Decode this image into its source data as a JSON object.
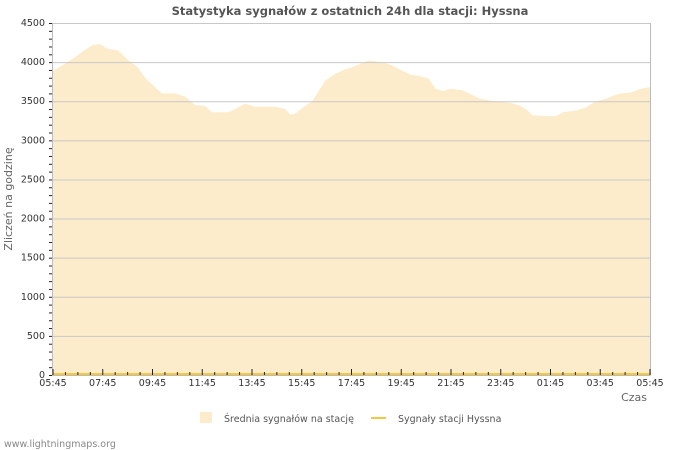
{
  "title": "Statystyka sygnałów z ostatnich 24h dla stacji: Hyssna",
  "footer": "www.lightningmaps.org",
  "colors": {
    "area_fill": "#fdeccb",
    "station_line": "#f5c842",
    "grid": "#c8c8c8",
    "axis": "#bbbbbb",
    "title": "#555555"
  },
  "legend": {
    "items": [
      {
        "label": "Średnia sygnałów na stację",
        "type": "area"
      },
      {
        "label": "Sygnały stacji Hyssna",
        "type": "line"
      }
    ]
  },
  "chart_data": {
    "type": "area",
    "title": "Statystyka sygnałów z ostatnich 24h dla stacji: Hyssna",
    "xlabel": "Czas",
    "ylabel": "Zliczeń na godzinę",
    "ylim": [
      0,
      4500
    ],
    "yticks": [
      0,
      500,
      1000,
      1500,
      2000,
      2500,
      3000,
      3500,
      4000,
      4500
    ],
    "xticks": [
      "05:45",
      "07:45",
      "09:45",
      "11:45",
      "13:45",
      "15:45",
      "17:45",
      "19:45",
      "21:45",
      "23:45",
      "01:45",
      "03:45",
      "05:45"
    ],
    "grid": true,
    "legend_position": "bottom",
    "series": [
      {
        "name": "Średnia sygnałów na stację",
        "type": "area",
        "x_hours_from_start": [
          0,
          0.48,
          0.88,
          1.29,
          1.61,
          1.89,
          2.21,
          2.61,
          3.01,
          3.42,
          3.7,
          4.1,
          4.38,
          4.9,
          5.31,
          5.71,
          6.11,
          6.39,
          7.04,
          7.32,
          7.72,
          8.12,
          8.93,
          9.33,
          9.53,
          9.73,
          10.13,
          10.42,
          10.66,
          10.94,
          11.35,
          11.75,
          12.15,
          12.44,
          12.68,
          13.16,
          13.56,
          13.97,
          14.37,
          14.77,
          15.09,
          15.38,
          15.7,
          15.98,
          16.46,
          16.87,
          17.19,
          17.79,
          18.39,
          18.8,
          19.08,
          19.28,
          19.81,
          20.21,
          20.49,
          21.01,
          21.42,
          21.82,
          22.22,
          22.51,
          22.83,
          23.23,
          23.63,
          24
        ],
        "values": [
          3890,
          3980,
          4060,
          4160,
          4220,
          4230,
          4170,
          4150,
          4030,
          3930,
          3800,
          3680,
          3600,
          3600,
          3560,
          3450,
          3440,
          3360,
          3360,
          3400,
          3470,
          3430,
          3430,
          3400,
          3330,
          3340,
          3440,
          3500,
          3620,
          3760,
          3850,
          3910,
          3950,
          3990,
          4020,
          4000,
          3970,
          3900,
          3840,
          3820,
          3790,
          3660,
          3630,
          3660,
          3640,
          3580,
          3530,
          3500,
          3480,
          3440,
          3380,
          3320,
          3310,
          3310,
          3360,
          3380,
          3420,
          3500,
          3530,
          3570,
          3600,
          3610,
          3660,
          3680
        ]
      },
      {
        "name": "Sygnały stacji Hyssna",
        "type": "line",
        "values_constant": 0
      }
    ]
  }
}
